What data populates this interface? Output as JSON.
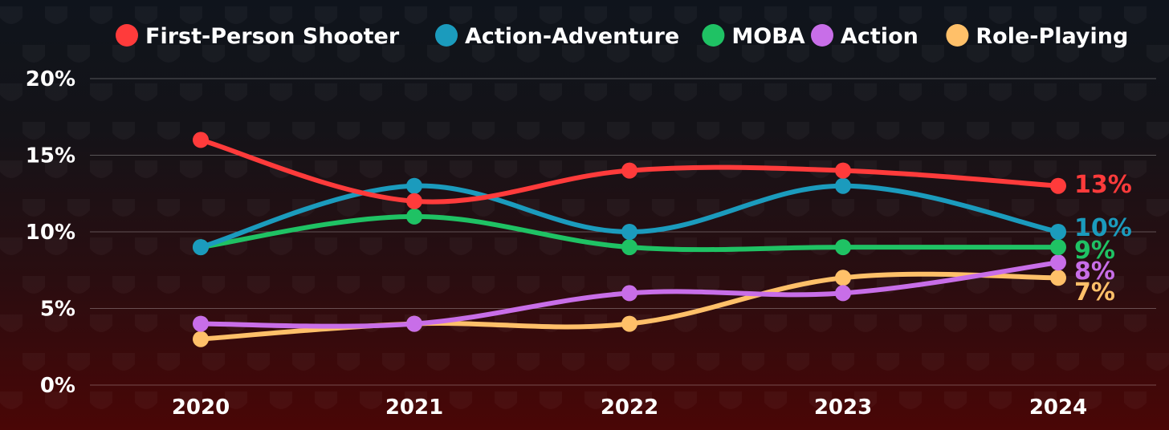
{
  "chart_data": {
    "type": "line",
    "title": "",
    "xlabel": "",
    "ylabel": "",
    "x": [
      "2020",
      "2021",
      "2022",
      "2023",
      "2024"
    ],
    "y_ticks": [
      "0%",
      "5%",
      "10%",
      "15%",
      "20%"
    ],
    "ylim": [
      0,
      20
    ],
    "grid": true,
    "legend_position": "top",
    "series": [
      {
        "name": "First-Person Shooter",
        "values": [
          16,
          12,
          14,
          14,
          13
        ],
        "color": "#ff3b3b",
        "end_label": "13%"
      },
      {
        "name": "Action-Adventure",
        "values": [
          9,
          13,
          10,
          13,
          10
        ],
        "color": "#1b9bbd",
        "end_label": "10%"
      },
      {
        "name": "MOBA",
        "values": [
          9,
          11,
          9,
          9,
          9
        ],
        "color": "#1fc264",
        "end_label": "9%"
      },
      {
        "name": "Action",
        "values": [
          4,
          4,
          6,
          6,
          8
        ],
        "color": "#c86ee8",
        "end_label": "8%"
      },
      {
        "name": "Role-Playing",
        "values": [
          3,
          4,
          4,
          7,
          7
        ],
        "color": "#ffc069",
        "end_label": "7%"
      }
    ]
  }
}
